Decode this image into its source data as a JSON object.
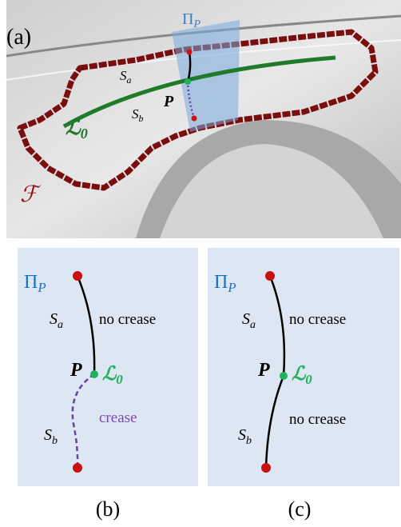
{
  "panel_a": {
    "label": "(a)",
    "plane": {
      "base": "Π",
      "sub": "P"
    },
    "s_a": {
      "base": "S",
      "sub": "a"
    },
    "s_b": {
      "base": "S",
      "sub": "b"
    },
    "point": "P",
    "curve": {
      "base": "ℒ",
      "sub": "0"
    },
    "region": "ℱ"
  },
  "panel_b": {
    "label": "(b)",
    "plane": {
      "base": "Π",
      "sub": "P"
    },
    "s_a": {
      "base": "S",
      "sub": "a"
    },
    "s_b": {
      "base": "S",
      "sub": "b"
    },
    "point": "P",
    "curve": {
      "base": "ℒ",
      "sub": "0"
    },
    "upper": "no crease",
    "lower": "crease"
  },
  "panel_c": {
    "label": "(c)",
    "plane": {
      "base": "Π",
      "sub": "P"
    },
    "s_a": {
      "base": "S",
      "sub": "a"
    },
    "s_b": {
      "base": "S",
      "sub": "b"
    },
    "point": "P",
    "curve": {
      "base": "ℒ",
      "sub": "0"
    },
    "upper": "no crease",
    "lower": "no crease"
  }
}
